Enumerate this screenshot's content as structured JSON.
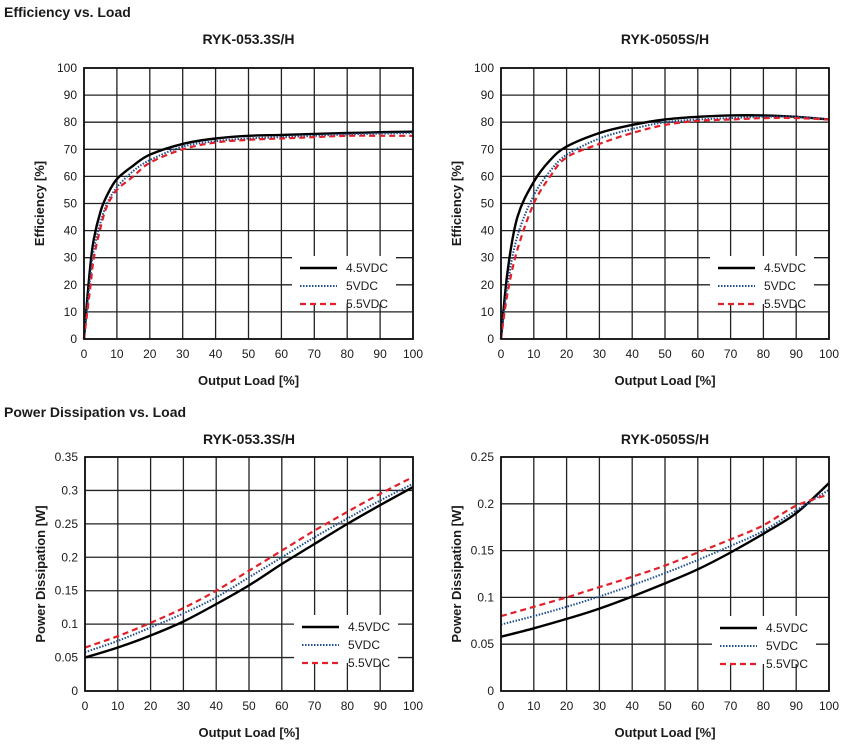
{
  "sections": {
    "efficiency_title": "Efficiency vs. Load",
    "power_title": "Power Dissipation vs. Load"
  },
  "colors": {
    "4.5VDC": "#000000",
    "5VDC": "#1f4e8c",
    "5.5VDC": "#e0202a"
  },
  "chart_data": [
    {
      "type": "line",
      "title": "RYK-053.3S/H",
      "xlabel": "Output Load [%]",
      "ylabel": "Efficiency [%]",
      "xlim": [
        0,
        100
      ],
      "ylim": [
        0,
        100
      ],
      "xticks": [
        "0",
        "10",
        "20",
        "30",
        "40",
        "50",
        "60",
        "70",
        "80",
        "90",
        "100"
      ],
      "yticks": [
        "0",
        "10",
        "20",
        "30",
        "40",
        "50",
        "60",
        "70",
        "80",
        "90",
        "100"
      ],
      "grid": true,
      "legend": "bottom-right",
      "series": [
        {
          "name": "4.5VDC",
          "style": "solid",
          "x": [
            0,
            1,
            2,
            3,
            5,
            7,
            10,
            15,
            20,
            30,
            40,
            50,
            60,
            70,
            80,
            90,
            100
          ],
          "y": [
            0,
            15,
            28,
            37,
            47,
            53,
            59,
            64,
            68,
            72,
            74,
            75,
            75.3,
            75.7,
            76,
            76.3,
            76.5
          ]
        },
        {
          "name": "5VDC",
          "style": "dotted",
          "x": [
            0,
            1,
            2,
            3,
            5,
            7,
            10,
            15,
            20,
            30,
            40,
            50,
            60,
            70,
            80,
            90,
            100
          ],
          "y": [
            0,
            12,
            24,
            33,
            43,
            50,
            56,
            62,
            66,
            71,
            73,
            74,
            74.5,
            75,
            75.5,
            75.8,
            76
          ]
        },
        {
          "name": "5.5VDC",
          "style": "dashed",
          "x": [
            0,
            1,
            2,
            3,
            5,
            7,
            10,
            15,
            20,
            30,
            40,
            50,
            60,
            70,
            80,
            90,
            100
          ],
          "y": [
            0,
            10,
            20,
            30,
            41,
            49,
            55,
            60,
            65,
            70,
            72.5,
            73.5,
            74,
            74.5,
            75,
            75,
            75
          ]
        }
      ]
    },
    {
      "type": "line",
      "title": "RYK-0505S/H",
      "xlabel": "Output Load [%]",
      "ylabel": "Efficiency [%]",
      "xlim": [
        0,
        100
      ],
      "ylim": [
        0,
        100
      ],
      "xticks": [
        "0",
        "10",
        "20",
        "30",
        "40",
        "50",
        "60",
        "70",
        "80",
        "90",
        "100"
      ],
      "yticks": [
        "0",
        "10",
        "20",
        "30",
        "40",
        "50",
        "60",
        "70",
        "80",
        "90",
        "100"
      ],
      "grid": true,
      "legend": "bottom-right",
      "series": [
        {
          "name": "4.5VDC",
          "style": "solid",
          "x": [
            0,
            2,
            5,
            10,
            15,
            20,
            30,
            40,
            50,
            60,
            70,
            80,
            90,
            100
          ],
          "y": [
            0,
            25,
            45,
            58,
            66,
            71,
            76,
            79,
            81,
            82,
            82.5,
            82.5,
            82,
            81
          ]
        },
        {
          "name": "5VDC",
          "style": "dotted",
          "x": [
            0,
            2,
            5,
            10,
            15,
            20,
            30,
            40,
            50,
            60,
            70,
            80,
            90,
            100
          ],
          "y": [
            0,
            20,
            38,
            53,
            62,
            68,
            74,
            77.5,
            80,
            81,
            81.5,
            82,
            82,
            81
          ]
        },
        {
          "name": "5.5VDC",
          "style": "dashed",
          "x": [
            0,
            2,
            5,
            10,
            15,
            20,
            30,
            40,
            50,
            60,
            70,
            80,
            90,
            100
          ],
          "y": [
            0,
            17,
            33,
            50,
            60,
            67,
            72,
            76,
            79,
            80.5,
            81,
            81.5,
            81.5,
            81
          ]
        }
      ]
    },
    {
      "type": "line",
      "title": "RYK-053.3S/H",
      "xlabel": "Output Load [%]",
      "ylabel": "Power Dissipation [W]",
      "xlim": [
        0,
        100
      ],
      "ylim": [
        0,
        0.35
      ],
      "xticks": [
        "0",
        "10",
        "20",
        "30",
        "40",
        "50",
        "60",
        "70",
        "80",
        "90",
        "100"
      ],
      "yticks": [
        "0",
        "0.05",
        "0.1",
        "0.15",
        "0.2",
        "0.25",
        "0.3",
        "0.35"
      ],
      "grid": true,
      "legend": "bottom-right",
      "series": [
        {
          "name": "4.5VDC",
          "style": "solid",
          "x": [
            0,
            10,
            20,
            30,
            40,
            50,
            60,
            70,
            80,
            90,
            100
          ],
          "y": [
            0.05,
            0.065,
            0.083,
            0.104,
            0.13,
            0.158,
            0.19,
            0.22,
            0.25,
            0.278,
            0.305
          ]
        },
        {
          "name": "5VDC",
          "style": "dotted",
          "x": [
            0,
            10,
            20,
            30,
            40,
            50,
            60,
            70,
            80,
            90,
            100
          ],
          "y": [
            0.058,
            0.075,
            0.095,
            0.116,
            0.14,
            0.17,
            0.2,
            0.23,
            0.258,
            0.285,
            0.31
          ]
        },
        {
          "name": "5.5VDC",
          "style": "dashed",
          "x": [
            0,
            10,
            20,
            30,
            40,
            50,
            60,
            70,
            80,
            90,
            100
          ],
          "y": [
            0.065,
            0.082,
            0.102,
            0.124,
            0.15,
            0.18,
            0.21,
            0.24,
            0.268,
            0.295,
            0.32
          ]
        }
      ]
    },
    {
      "type": "line",
      "title": "RYK-0505S/H",
      "xlabel": "Output Load [%]",
      "ylabel": "Power Dissipation [W]",
      "xlim": [
        0,
        100
      ],
      "ylim": [
        0,
        0.25
      ],
      "xticks": [
        "0",
        "10",
        "20",
        "30",
        "40",
        "50",
        "60",
        "70",
        "80",
        "90",
        "100"
      ],
      "yticks": [
        "0",
        "0.05",
        "0.1",
        "0.15",
        "0.2",
        "0.25"
      ],
      "grid": true,
      "legend": "bottom-right",
      "series": [
        {
          "name": "4.5VDC",
          "style": "solid",
          "x": [
            0,
            10,
            20,
            30,
            40,
            50,
            60,
            70,
            80,
            90,
            100
          ],
          "y": [
            0.058,
            0.067,
            0.077,
            0.088,
            0.101,
            0.115,
            0.13,
            0.148,
            0.168,
            0.19,
            0.222
          ]
        },
        {
          "name": "5VDC",
          "style": "dotted",
          "x": [
            0,
            10,
            20,
            30,
            40,
            50,
            60,
            70,
            80,
            90,
            100
          ],
          "y": [
            0.071,
            0.08,
            0.09,
            0.101,
            0.113,
            0.126,
            0.14,
            0.155,
            0.171,
            0.193,
            0.215
          ]
        },
        {
          "name": "5.5VDC",
          "style": "dashed",
          "x": [
            0,
            10,
            20,
            30,
            40,
            50,
            60,
            70,
            80,
            90,
            100
          ],
          "y": [
            0.08,
            0.09,
            0.1,
            0.111,
            0.122,
            0.134,
            0.148,
            0.162,
            0.177,
            0.198,
            0.21
          ]
        }
      ]
    }
  ]
}
